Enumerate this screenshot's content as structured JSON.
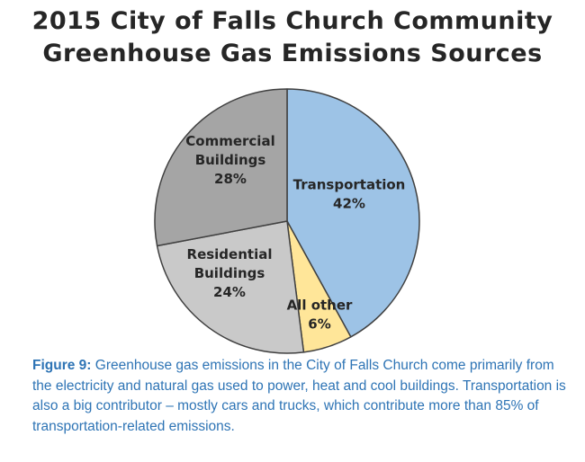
{
  "chart_data": {
    "type": "pie",
    "title": "2015 City of Falls Church Community Greenhouse Gas Emissions Sources",
    "title_lines": [
      "2015 City of Falls Church Community",
      "Greenhouse Gas Emissions Sources"
    ],
    "start_angle_deg": 0,
    "direction": "clockwise",
    "legend": "none",
    "slices": [
      {
        "label_lines": [
          "Transportation",
          "42%"
        ],
        "value": 42,
        "color": "#9dc3e6"
      },
      {
        "label_lines": [
          "All other",
          "6%"
        ],
        "value": 6,
        "color": "#ffe699"
      },
      {
        "label_lines": [
          "Residential",
          "Buildings",
          "24%"
        ],
        "value": 24,
        "color": "#c9c9c9"
      },
      {
        "label_lines": [
          "Commercial",
          "Buildings",
          "28%"
        ],
        "value": 28,
        "color": "#a5a5a5"
      }
    ]
  },
  "caption": {
    "label": "Figure 9:",
    "text": " Greenhouse gas emissions in the City of Falls Church come primarily from the electricity and natural gas used to power, heat and cool buildings. Transportation is also a big contributor – mostly cars and trucks, which contribute more than 85% of transportation-related emissions."
  }
}
